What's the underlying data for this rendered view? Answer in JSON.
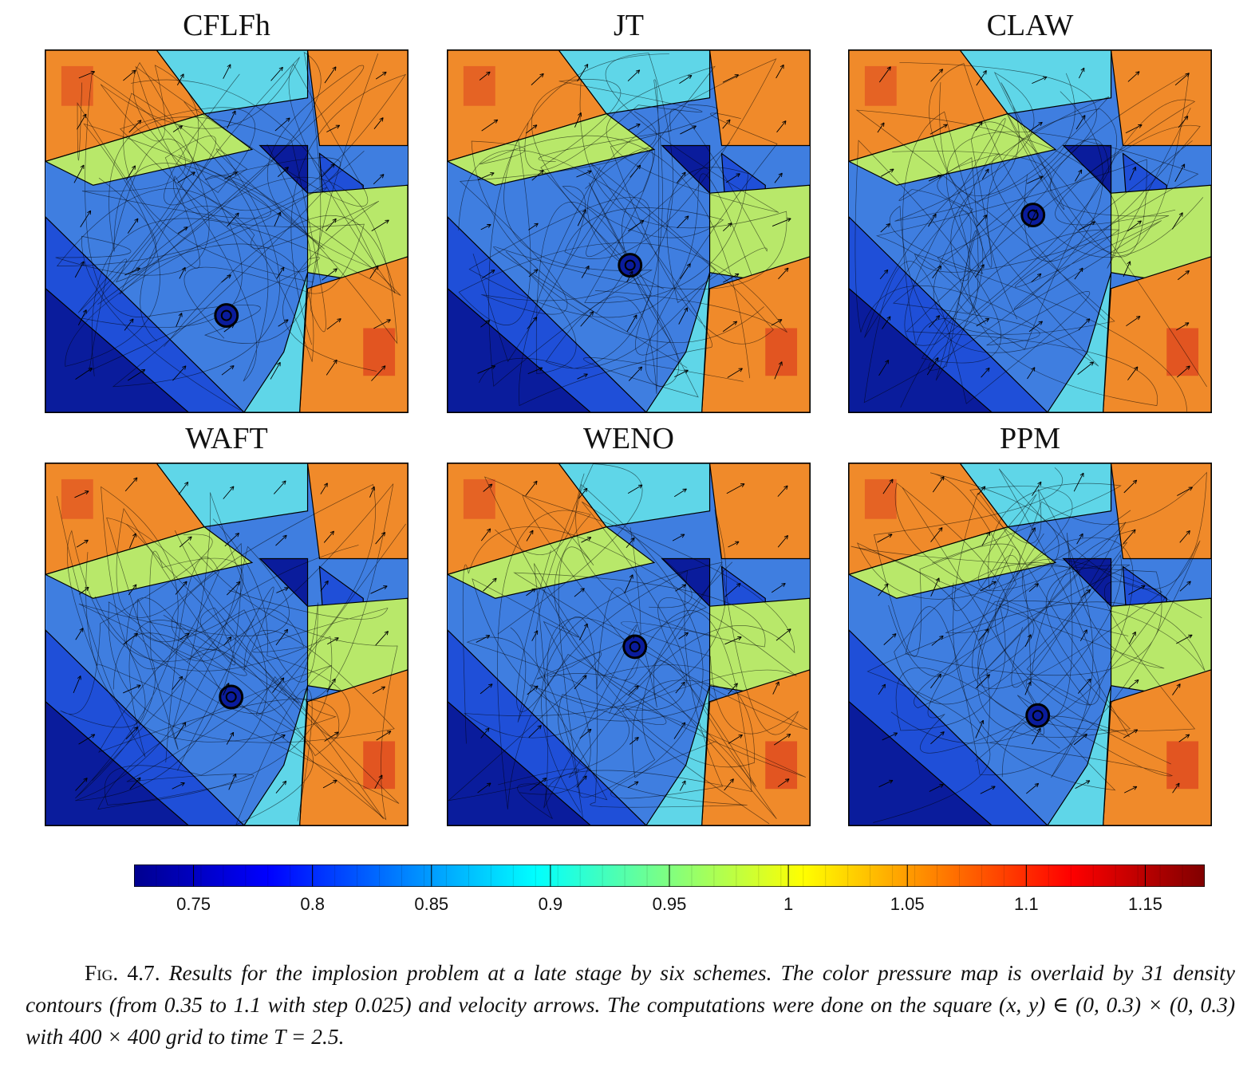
{
  "panels": [
    {
      "title": "CFLFh"
    },
    {
      "title": "JT"
    },
    {
      "title": "CLAW"
    },
    {
      "title": "WAFT"
    },
    {
      "title": "WENO"
    },
    {
      "title": "PPM"
    }
  ],
  "colorbar": {
    "min": 0.725,
    "max": 1.175,
    "tick_labels": [
      "0.75",
      "0.8",
      "0.85",
      "0.9",
      "0.95",
      "1",
      "1.05",
      "1.1",
      "1.15"
    ],
    "tick_values": [
      0.75,
      0.8,
      0.85,
      0.9,
      0.95,
      1.0,
      1.05,
      1.1,
      1.15
    ],
    "colormap": "jet"
  },
  "caption": {
    "label": "Fig. 4.7.",
    "text": "Results for the implosion problem at a late stage by six schemes. The color pressure map is overlaid by 31 density contours (from 0.35 to 1.1 with step 0.025) and velocity arrows. The computations were done on the square (x, y) ∈ (0, 0.3) × (0, 0.3) with 400 × 400 grid to time T = 2.5."
  },
  "colors": {
    "dark_blue": "#0a1c9c",
    "blue": "#1f4fd8",
    "mid_blue": "#3f7ee0",
    "cyan": "#5fd6e8",
    "green_yellow": "#b8e86a",
    "yellow": "#f5e04a",
    "orange": "#f08a2a",
    "red": "#d8321c"
  }
}
